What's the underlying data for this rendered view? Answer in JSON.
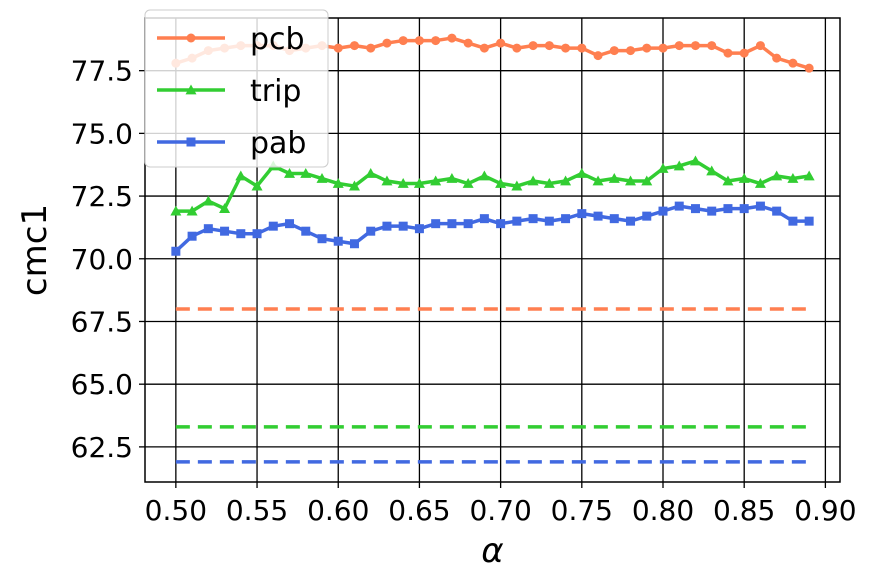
{
  "chart_data": {
    "type": "line",
    "xlabel": "α",
    "ylabel": "cmc1",
    "xlim": [
      0.481,
      0.909
    ],
    "ylim": [
      61.1,
      79.6
    ],
    "grid": true,
    "legend_placement": "top-left",
    "xticks": [
      0.5,
      0.55,
      0.6,
      0.65,
      0.7,
      0.75,
      0.8,
      0.85,
      0.9
    ],
    "xtick_labels": [
      "0.50",
      "0.55",
      "0.60",
      "0.65",
      "0.70",
      "0.75",
      "0.80",
      "0.85",
      "0.90"
    ],
    "yticks": [
      62.5,
      65.0,
      67.5,
      70.0,
      72.5,
      75.0,
      77.5
    ],
    "ytick_labels": [
      "62.5",
      "65.0",
      "67.5",
      "70.0",
      "72.5",
      "75.0",
      "77.5"
    ],
    "x": [
      0.5,
      0.51,
      0.52,
      0.53,
      0.54,
      0.55,
      0.56,
      0.57,
      0.58,
      0.59,
      0.6,
      0.61,
      0.62,
      0.63,
      0.64,
      0.65,
      0.66,
      0.67,
      0.68,
      0.69,
      0.7,
      0.71,
      0.72,
      0.73,
      0.74,
      0.75,
      0.76,
      0.77,
      0.78,
      0.79,
      0.8,
      0.81,
      0.82,
      0.83,
      0.84,
      0.85,
      0.86,
      0.87,
      0.88,
      0.89
    ],
    "series": [
      {
        "name": "pcb",
        "color": "#ff7f50",
        "marker": "circle",
        "values": [
          77.8,
          78.0,
          78.3,
          78.4,
          78.5,
          78.5,
          78.5,
          78.3,
          78.4,
          78.5,
          78.4,
          78.5,
          78.4,
          78.6,
          78.7,
          78.7,
          78.7,
          78.8,
          78.6,
          78.4,
          78.6,
          78.4,
          78.5,
          78.5,
          78.4,
          78.4,
          78.1,
          78.3,
          78.3,
          78.4,
          78.4,
          78.5,
          78.5,
          78.5,
          78.2,
          78.2,
          78.5,
          78.0,
          77.8,
          77.6
        ]
      },
      {
        "name": "trip",
        "color": "#32cd32",
        "marker": "triangle",
        "values": [
          71.9,
          71.9,
          72.3,
          72.0,
          73.3,
          72.9,
          73.7,
          73.4,
          73.4,
          73.2,
          73.0,
          72.9,
          73.4,
          73.1,
          73.0,
          73.0,
          73.1,
          73.2,
          73.0,
          73.3,
          73.0,
          72.9,
          73.1,
          73.0,
          73.1,
          73.4,
          73.1,
          73.2,
          73.1,
          73.1,
          73.6,
          73.7,
          73.9,
          73.5,
          73.1,
          73.2,
          73.0,
          73.3,
          73.2,
          73.3
        ]
      },
      {
        "name": "pab",
        "color": "#4169e1",
        "marker": "square",
        "values": [
          70.3,
          70.9,
          71.2,
          71.1,
          71.0,
          71.0,
          71.3,
          71.4,
          71.1,
          70.8,
          70.7,
          70.6,
          71.1,
          71.3,
          71.3,
          71.2,
          71.4,
          71.4,
          71.4,
          71.6,
          71.4,
          71.5,
          71.6,
          71.5,
          71.6,
          71.8,
          71.7,
          71.6,
          71.5,
          71.7,
          71.9,
          72.1,
          72.0,
          71.9,
          72.0,
          72.0,
          72.1,
          71.9,
          71.5,
          71.5
        ]
      }
    ],
    "baselines": [
      {
        "series": "pcb",
        "color": "#ff7f50",
        "value": 68.0,
        "x_range": [
          0.5,
          0.89
        ]
      },
      {
        "series": "trip",
        "color": "#32cd32",
        "value": 63.3,
        "x_range": [
          0.5,
          0.89
        ]
      },
      {
        "series": "pab",
        "color": "#4169e1",
        "value": 61.9,
        "x_range": [
          0.5,
          0.89
        ]
      }
    ]
  }
}
